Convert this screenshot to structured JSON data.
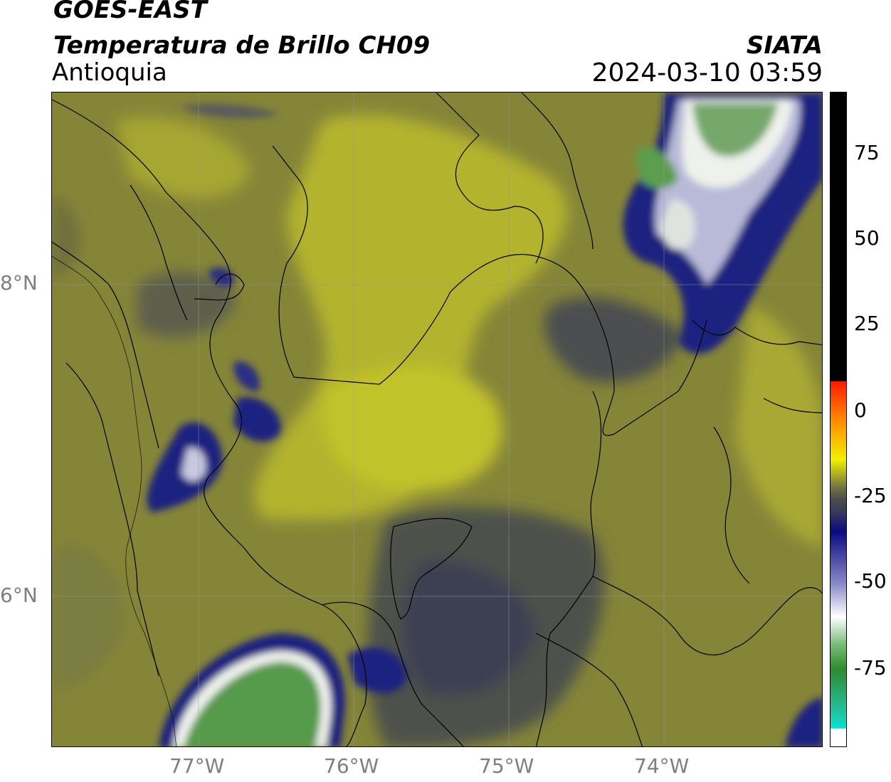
{
  "header": {
    "source": "GOES-EAST",
    "product": "Temperatura de Brillo CH09",
    "region": "Antioquia",
    "organization": "SIATA",
    "datetime": "2024-03-10 03:59"
  },
  "axes": {
    "lat_ticks": [
      "8°N",
      "6°N"
    ],
    "lon_ticks": [
      "77°W",
      "76°W",
      "75°W",
      "74°W"
    ]
  },
  "colorbar": {
    "ticks": [
      "75",
      "50",
      "25",
      "0",
      "-25",
      "-50",
      "-75"
    ],
    "colors": [
      "#000000",
      "#ff0000",
      "#ffff00",
      "#4d4d4d",
      "#0a0a80",
      "#ffffff",
      "#2e8b2e",
      "#00e5d1"
    ]
  },
  "map_colors": {
    "olive": "#8a8a3a",
    "yellow": "#b9b930",
    "dark": "#4f5248",
    "navy": "#1d1f7d",
    "white": "#f5f7f5",
    "green": "#3d8c32"
  }
}
